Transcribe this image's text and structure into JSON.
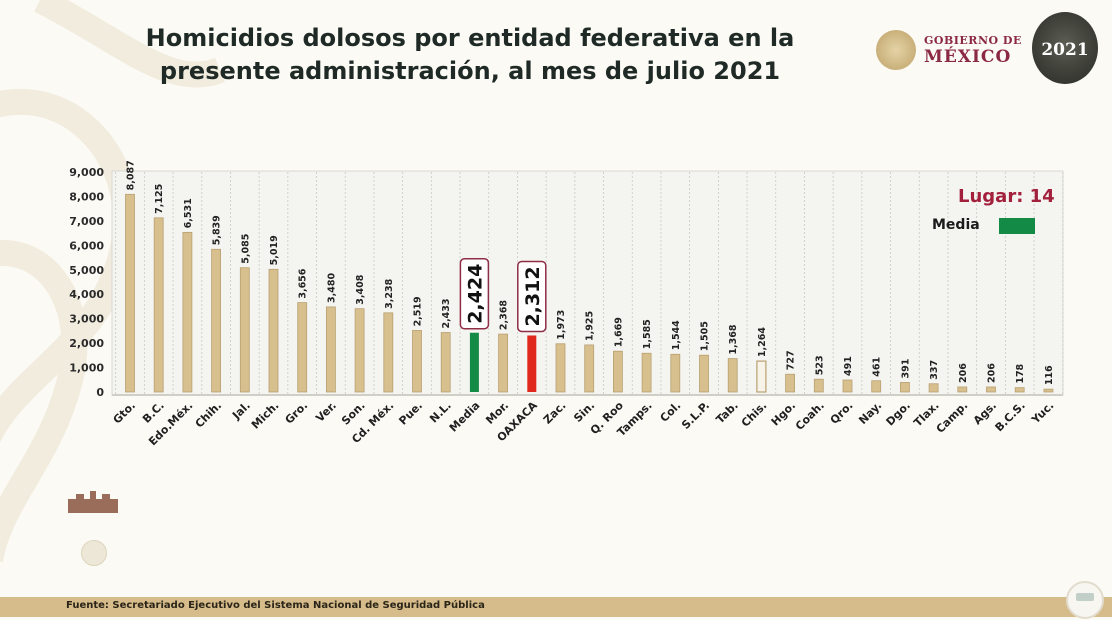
{
  "header": {
    "title_line1": "Homicidios dolosos por entidad federativa en la",
    "title_line2": "presente administración, al mes de julio 2021",
    "gov_logo_line1": "GOBIERNO DE",
    "gov_logo_line2": "MÉXICO",
    "year_logo_text": "2021"
  },
  "legend": {
    "lugar_label": "Lugar:  14",
    "media_label": "Media",
    "media_color": "#138a45"
  },
  "footer": {
    "source": "Fuente: Secretariado Ejecutivo del Sistema Nacional de Seguridad Pública"
  },
  "colors": {
    "bar_default": "#d7bf8e",
    "bar_outline": "#b9a071",
    "bar_media": "#138a45",
    "bar_highlight": "#e0281e",
    "box_outline": "#8e2d45",
    "footer_bar": "#d6bc8a",
    "brand": "#8b2842"
  },
  "chart_data": {
    "type": "bar",
    "title": "Homicidios dolosos por entidad federativa en la presente administración, al mes de julio 2021",
    "xlabel": "",
    "ylabel": "",
    "ylim": [
      0,
      9000
    ],
    "yticks": [
      "0",
      "1,000",
      "2,000",
      "3,000",
      "4,000",
      "5,000",
      "6,000",
      "7,000",
      "8,000",
      "9,000"
    ],
    "grid": "vertical dashed",
    "legend_position": "top-right",
    "categories": [
      "Gto.",
      "B.C.",
      "Edo.Méx.",
      "Chih.",
      "Jal.",
      "Mich.",
      "Gro.",
      "Ver.",
      "Son.",
      "Cd. Méx.",
      "Pue.",
      "N.L.",
      "Media",
      "Mor.",
      "OAXACA",
      "Zac.",
      "Sin.",
      "Q. Roo",
      "Tamps.",
      "Col.",
      "S.L.P.",
      "Tab.",
      "Chis.",
      "Hgo.",
      "Coah.",
      "Qro.",
      "Nay.",
      "Dgo.",
      "Tlax.",
      "Camp.",
      "Ags.",
      "B.C.S.",
      "Yuc."
    ],
    "values": [
      8087,
      7125,
      6531,
      5839,
      5085,
      5019,
      3656,
      3480,
      3408,
      3238,
      2519,
      2433,
      2424,
      2368,
      2312,
      1973,
      1925,
      1669,
      1585,
      1544,
      1505,
      1368,
      1264,
      727,
      523,
      491,
      461,
      391,
      337,
      206,
      206,
      178,
      116
    ],
    "value_labels": [
      "8,087",
      "7,125",
      "6,531",
      "5,839",
      "5,085",
      "5,019",
      "3,656",
      "3,480",
      "3,408",
      "3,238",
      "2,519",
      "2,433",
      "2,424",
      "2,368",
      "2,312",
      "1,973",
      "1,925",
      "1,669",
      "1,585",
      "1,544",
      "1,505",
      "1,368",
      "1,264",
      "727",
      "523",
      "491",
      "461",
      "391",
      "337",
      "206",
      "206",
      "178",
      "116"
    ],
    "highlight": {
      "Media": "media",
      "OAXACA": "selected",
      "Chis.": "outline"
    },
    "annotation": "Lugar: 14"
  }
}
